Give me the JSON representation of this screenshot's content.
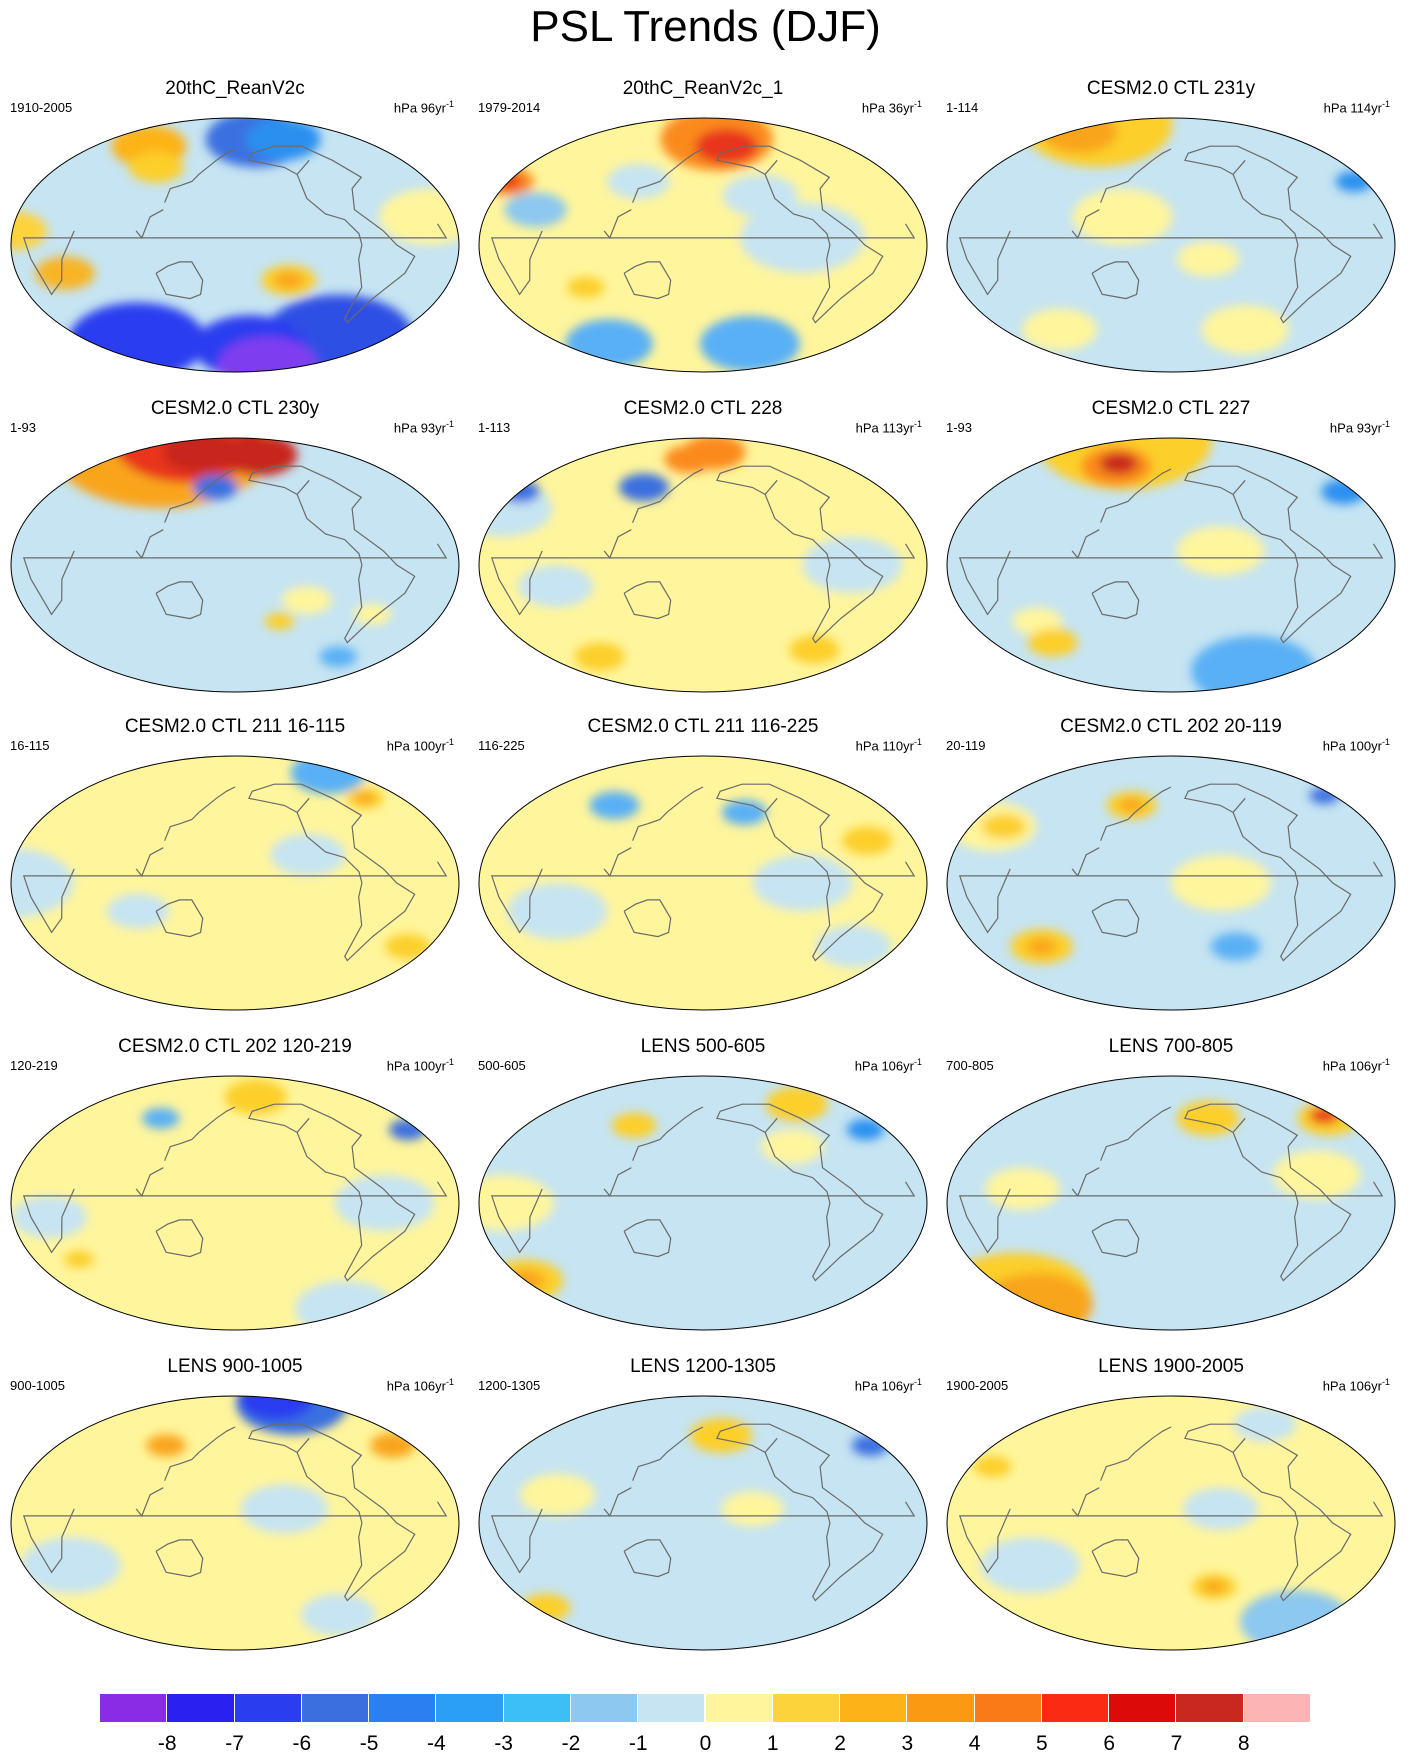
{
  "title": "PSL Trends (DJF)",
  "unit_label": "hPa",
  "panels": [
    {
      "title": "20thC_ReanV2c",
      "period": "1910-2005",
      "scale": "96yr",
      "scale_exp": "-1",
      "base": "#c6e4f2",
      "blobs": [
        {
          "lon": -150,
          "lat": 75,
          "r": 40,
          "c": "#3b6fe0"
        },
        {
          "lon": -110,
          "lat": 75,
          "r": 30,
          "c": "#2b90f0"
        },
        {
          "lon": 70,
          "lat": 70,
          "r": 30,
          "c": "#fcb318"
        },
        {
          "lon": 100,
          "lat": 55,
          "r": 22,
          "c": "#fccf2c"
        },
        {
          "lon": -20,
          "lat": 20,
          "r": 40,
          "c": "#fff59c"
        },
        {
          "lon": 0,
          "lat": 10,
          "r": 28,
          "c": "#fdd33c"
        },
        {
          "lon": -135,
          "lat": -25,
          "r": 22,
          "c": "#fccf2c"
        },
        {
          "lon": -135,
          "lat": -25,
          "r": 12,
          "c": "#f9a51a"
        },
        {
          "lon": 40,
          "lat": -20,
          "r": 24,
          "c": "#f7b528"
        },
        {
          "lon": -60,
          "lat": -65,
          "r": 60,
          "c": "#2f4fe4"
        },
        {
          "lon": 60,
          "lat": -68,
          "r": 55,
          "c": "#2a3ef0"
        },
        {
          "lon": -160,
          "lat": -72,
          "r": 45,
          "c": "#2a3ef0"
        },
        {
          "lon": -100,
          "lat": -85,
          "r": 40,
          "c": "#7f3cf0"
        }
      ]
    },
    {
      "title": "20thC_ReanV2c_1",
      "period": "1979-2014",
      "scale": "36yr",
      "scale_exp": "-1",
      "base": "#fff59c",
      "blobs": [
        {
          "lon": -160,
          "lat": 75,
          "r": 45,
          "c": "#fb8a1a"
        },
        {
          "lon": -150,
          "lat": 70,
          "r": 25,
          "c": "#e8361a"
        },
        {
          "lon": 0,
          "lat": 45,
          "r": 20,
          "c": "#fb8a1a"
        },
        {
          "lon": 0,
          "lat": 45,
          "r": 10,
          "c": "#e8361a"
        },
        {
          "lon": -130,
          "lat": 35,
          "r": 30,
          "c": "#c6e4f2"
        },
        {
          "lon": -100,
          "lat": 5,
          "r": 50,
          "c": "#c6e4f2"
        },
        {
          "lon": 40,
          "lat": 25,
          "r": 25,
          "c": "#8cc8ef"
        },
        {
          "lon": 120,
          "lat": 45,
          "r": 25,
          "c": "#c6e4f2"
        },
        {
          "lon": -120,
          "lat": -70,
          "r": 40,
          "c": "#5ab0f5"
        },
        {
          "lon": 60,
          "lat": -70,
          "r": 35,
          "c": "#5ab0f5"
        },
        {
          "lon": 80,
          "lat": -30,
          "r": 15,
          "c": "#fccf2c"
        }
      ]
    },
    {
      "title": "CESM2.0 CTL 231y",
      "period": "1-114",
      "scale": "114yr",
      "scale_exp": "-1",
      "base": "#c6e4f2",
      "blobs": [
        {
          "lon": 0,
          "lat": 85,
          "r": 60,
          "c": "#fccf2c"
        },
        {
          "lon": 20,
          "lat": 80,
          "r": 30,
          "c": "#f9a51a"
        },
        {
          "lon": -10,
          "lat": 45,
          "r": 15,
          "c": "#2b90f0"
        },
        {
          "lon": 140,
          "lat": 20,
          "r": 40,
          "c": "#fff59c"
        },
        {
          "lon": -150,
          "lat": -10,
          "r": 25,
          "c": "#fff59c"
        },
        {
          "lon": -100,
          "lat": -60,
          "r": 35,
          "c": "#fff59c"
        },
        {
          "lon": 60,
          "lat": -60,
          "r": 30,
          "c": "#fff59c"
        }
      ]
    },
    {
      "title": "CESM2.0 CTL 230y",
      "period": "1-93",
      "scale": "93yr",
      "scale_exp": "-1",
      "base": "#c6e4f2",
      "blobs": [
        {
          "lon": 0,
          "lat": 85,
          "r": 90,
          "c": "#f9a51a"
        },
        {
          "lon": 0,
          "lat": 88,
          "r": 60,
          "c": "#e8361a"
        },
        {
          "lon": -140,
          "lat": 78,
          "r": 30,
          "c": "#c8281e"
        },
        {
          "lon": 120,
          "lat": 80,
          "r": 30,
          "c": "#c8281e"
        },
        {
          "lon": 160,
          "lat": 55,
          "r": 18,
          "c": "#3b6fe0"
        },
        {
          "lon": -120,
          "lat": -25,
          "r": 20,
          "c": "#fff59c"
        },
        {
          "lon": -60,
          "lat": -35,
          "r": 15,
          "c": "#fff59c"
        },
        {
          "lon": -140,
          "lat": -40,
          "r": 12,
          "c": "#fccf2c"
        },
        {
          "lon": -60,
          "lat": -65,
          "r": 15,
          "c": "#5ab0f5"
        }
      ]
    },
    {
      "title": "CESM2.0 CTL 228",
      "period": "1-113",
      "scale": "113yr",
      "scale_exp": "-1",
      "base": "#fff59c",
      "blobs": [
        {
          "lon": 0,
          "lat": 40,
          "r": 40,
          "c": "#c6e4f2"
        },
        {
          "lon": 0,
          "lat": 52,
          "r": 16,
          "c": "#3b6fe0"
        },
        {
          "lon": 120,
          "lat": 55,
          "r": 20,
          "c": "#3b6fe0"
        },
        {
          "lon": -160,
          "lat": 80,
          "r": 25,
          "c": "#fb8a1a"
        },
        {
          "lon": 160,
          "lat": 75,
          "r": 20,
          "c": "#fb8a1a"
        },
        {
          "lon": -60,
          "lat": 0,
          "r": 40,
          "c": "#c6e4f2"
        },
        {
          "lon": 60,
          "lat": -15,
          "r": 30,
          "c": "#c6e4f2"
        },
        {
          "lon": -60,
          "lat": -60,
          "r": 20,
          "c": "#fccf2c"
        },
        {
          "lon": 60,
          "lat": -65,
          "r": 20,
          "c": "#fccf2c"
        }
      ]
    },
    {
      "title": "CESM2.0 CTL 227",
      "period": "1-93",
      "scale": "93yr",
      "scale_exp": "-1",
      "base": "#c6e4f2",
      "blobs": [
        {
          "lon": -10,
          "lat": 52,
          "r": 18,
          "c": "#2b90f0"
        },
        {
          "lon": 0,
          "lat": 88,
          "r": 70,
          "c": "#fccf2c"
        },
        {
          "lon": 110,
          "lat": 70,
          "r": 28,
          "c": "#fb8a1a"
        },
        {
          "lon": 110,
          "lat": 72,
          "r": 15,
          "c": "#c8281e"
        },
        {
          "lon": -140,
          "lat": 10,
          "r": 35,
          "c": "#fff59c"
        },
        {
          "lon": 60,
          "lat": -40,
          "r": 20,
          "c": "#fff59c"
        },
        {
          "lon": 60,
          "lat": -55,
          "r": 20,
          "c": "#fccf2c"
        },
        {
          "lon": -60,
          "lat": -75,
          "r": 50,
          "c": "#5ab0f5"
        }
      ]
    },
    {
      "title": "CESM2.0 CTL 211 16-115",
      "period": "16-115",
      "scale": "100yr",
      "scale_exp": "-1",
      "base": "#fff59c",
      "blobs": [
        {
          "lon": -30,
          "lat": 78,
          "r": 30,
          "c": "#5ab0f5"
        },
        {
          "lon": -40,
          "lat": 60,
          "r": 15,
          "c": "#fccf2c"
        },
        {
          "lon": -40,
          "lat": 60,
          "r": 8,
          "c": "#f9a51a"
        },
        {
          "lon": 0,
          "lat": 0,
          "r": 50,
          "c": "#c6e4f2"
        },
        {
          "lon": -120,
          "lat": 20,
          "r": 30,
          "c": "#c6e4f2"
        },
        {
          "lon": -20,
          "lat": -45,
          "r": 18,
          "c": "#fccf2c"
        },
        {
          "lon": 100,
          "lat": -20,
          "r": 25,
          "c": "#c6e4f2"
        }
      ]
    },
    {
      "title": "CESM2.0 CTL 211 116-225",
      "period": "116-225",
      "scale": "110yr",
      "scale_exp": "-1",
      "base": "#fff59c",
      "blobs": [
        {
          "lon": -140,
          "lat": 50,
          "r": 18,
          "c": "#5ab0f5"
        },
        {
          "lon": 90,
          "lat": 55,
          "r": 20,
          "c": "#5ab0f5"
        },
        {
          "lon": -40,
          "lat": 30,
          "r": 20,
          "c": "#fccf2c"
        },
        {
          "lon": -100,
          "lat": 0,
          "r": 40,
          "c": "#c6e4f2"
        },
        {
          "lon": 60,
          "lat": -20,
          "r": 40,
          "c": "#c6e4f2"
        },
        {
          "lon": -40,
          "lat": -45,
          "r": 30,
          "c": "#c6e4f2"
        }
      ]
    },
    {
      "title": "CESM2.0 CTL 202 20-119",
      "period": "20-119",
      "scale": "100yr",
      "scale_exp": "-1",
      "base": "#c6e4f2",
      "blobs": [
        {
          "lon": 20,
          "lat": 40,
          "r": 35,
          "c": "#fff59c"
        },
        {
          "lon": 30,
          "lat": 40,
          "r": 18,
          "c": "#fccf2c"
        },
        {
          "lon": 140,
          "lat": 55,
          "r": 20,
          "c": "#fccf2c"
        },
        {
          "lon": 140,
          "lat": 55,
          "r": 10,
          "c": "#f9a51a"
        },
        {
          "lon": -10,
          "lat": 62,
          "r": 12,
          "c": "#3b6fe0"
        },
        {
          "lon": -140,
          "lat": 0,
          "r": 40,
          "c": "#fff59c"
        },
        {
          "lon": -120,
          "lat": -45,
          "r": 20,
          "c": "#5ab0f5"
        },
        {
          "lon": 60,
          "lat": -45,
          "r": 25,
          "c": "#fccf2c"
        },
        {
          "lon": 60,
          "lat": -45,
          "r": 12,
          "c": "#f9a51a"
        }
      ]
    },
    {
      "title": "CESM2.0 CTL 202 120-219",
      "period": "120-219",
      "scale": "100yr",
      "scale_exp": "-1",
      "base": "#fff59c",
      "blobs": [
        {
          "lon": -150,
          "lat": 75,
          "r": 25,
          "c": "#fccf2c"
        },
        {
          "lon": -10,
          "lat": 52,
          "r": 15,
          "c": "#3b6fe0"
        },
        {
          "lon": 100,
          "lat": 60,
          "r": 15,
          "c": "#5ab0f5"
        },
        {
          "lon": -60,
          "lat": 0,
          "r": 40,
          "c": "#c6e4f2"
        },
        {
          "lon": 30,
          "lat": -10,
          "r": 30,
          "c": "#c6e4f2"
        },
        {
          "lon": 40,
          "lat": -40,
          "r": 12,
          "c": "#fccf2c"
        },
        {
          "lon": -20,
          "lat": -75,
          "r": 40,
          "c": "#c6e4f2"
        }
      ]
    },
    {
      "title": "LENS 500-605",
      "period": "500-605",
      "scale": "106yr",
      "scale_exp": "-1",
      "base": "#c6e4f2",
      "blobs": [
        {
          "lon": -20,
          "lat": 52,
          "r": 15,
          "c": "#2b90f0"
        },
        {
          "lon": -60,
          "lat": 70,
          "r": 25,
          "c": "#fccf2c"
        },
        {
          "lon": 110,
          "lat": 55,
          "r": 18,
          "c": "#fccf2c"
        },
        {
          "lon": -100,
          "lat": 40,
          "r": 25,
          "c": "#fff59c"
        },
        {
          "lon": 20,
          "lat": 0,
          "r": 40,
          "c": "#fff59c"
        },
        {
          "lon": 0,
          "lat": -55,
          "r": 30,
          "c": "#fccf2c"
        },
        {
          "lon": 0,
          "lat": -55,
          "r": 15,
          "c": "#f9a51a"
        }
      ]
    },
    {
      "title": "LENS 700-805",
      "period": "700-805",
      "scale": "106yr",
      "scale_exp": "-1",
      "base": "#c6e4f2",
      "blobs": [
        {
          "lon": -10,
          "lat": 60,
          "r": 25,
          "c": "#fccf2c"
        },
        {
          "lon": -10,
          "lat": 62,
          "r": 12,
          "c": "#e8361a"
        },
        {
          "lon": -140,
          "lat": 60,
          "r": 25,
          "c": "#fccf2c"
        },
        {
          "lon": -60,
          "lat": 20,
          "r": 35,
          "c": "#fff59c"
        },
        {
          "lon": 60,
          "lat": 10,
          "r": 30,
          "c": "#fff59c"
        },
        {
          "lon": 0,
          "lat": -65,
          "r": 60,
          "c": "#fccf2c"
        },
        {
          "lon": 0,
          "lat": -72,
          "r": 45,
          "c": "#f9a51a"
        }
      ]
    },
    {
      "title": "LENS 900-1005",
      "period": "900-1005",
      "scale": "106yr",
      "scale_exp": "-1",
      "base": "#fff59c",
      "blobs": [
        {
          "lon": -40,
          "lat": 85,
          "r": 45,
          "c": "#3b6fe0"
        },
        {
          "lon": -20,
          "lat": 88,
          "r": 30,
          "c": "#2a3ef0"
        },
        {
          "lon": -20,
          "lat": 55,
          "r": 18,
          "c": "#f9a51a"
        },
        {
          "lon": 110,
          "lat": 55,
          "r": 16,
          "c": "#f9a51a"
        },
        {
          "lon": -140,
          "lat": 10,
          "r": 35,
          "c": "#c6e4f2"
        },
        {
          "lon": 40,
          "lat": -30,
          "r": 40,
          "c": "#c6e4f2"
        },
        {
          "lon": -60,
          "lat": -65,
          "r": 30,
          "c": "#c6e4f2"
        }
      ]
    },
    {
      "title": "LENS 1200-1305",
      "period": "1200-1305",
      "scale": "106yr",
      "scale_exp": "-1",
      "base": "#c6e4f2",
      "blobs": [
        {
          "lon": -160,
          "lat": 62,
          "r": 25,
          "c": "#fccf2c"
        },
        {
          "lon": -10,
          "lat": 55,
          "r": 15,
          "c": "#3b6fe0"
        },
        {
          "lon": 60,
          "lat": 20,
          "r": 30,
          "c": "#fff59c"
        },
        {
          "lon": -140,
          "lat": 10,
          "r": 25,
          "c": "#fff59c"
        },
        {
          "lon": 10,
          "lat": -60,
          "r": 20,
          "c": "#fccf2c"
        }
      ]
    },
    {
      "title": "LENS 1900-2005",
      "period": "1900-2005",
      "scale": "106yr",
      "scale_exp": "-1",
      "base": "#fff59c",
      "blobs": [
        {
          "lon": -60,
          "lat": 70,
          "r": 25,
          "c": "#c6e4f2"
        },
        {
          "lon": 20,
          "lat": 40,
          "r": 15,
          "c": "#fccf2c"
        },
        {
          "lon": -140,
          "lat": 10,
          "r": 30,
          "c": "#c6e4f2"
        },
        {
          "lon": 60,
          "lat": -30,
          "r": 40,
          "c": "#c6e4f2"
        },
        {
          "lon": -140,
          "lat": -45,
          "r": 18,
          "c": "#fccf2c"
        },
        {
          "lon": -140,
          "lat": -45,
          "r": 9,
          "c": "#f9a51a"
        },
        {
          "lon": -20,
          "lat": -70,
          "r": 45,
          "c": "#8cc8ef"
        }
      ]
    }
  ],
  "colorbar": {
    "labels": [
      "-8",
      "-7",
      "-6",
      "-5",
      "-4",
      "-3",
      "-2",
      "-1",
      "0",
      "1",
      "2",
      "3",
      "4",
      "5",
      "6",
      "7",
      "8"
    ],
    "colors": [
      "#8a2be6",
      "#2a20f0",
      "#2a3ef0",
      "#3b6fe0",
      "#2b7ff0",
      "#2b9ff5",
      "#3cbff5",
      "#8cc8ef",
      "#c6e4f2",
      "#fff59c",
      "#fdd33c",
      "#fcb318",
      "#fb9a12",
      "#f97a16",
      "#fb2a12",
      "#dd0a0a",
      "#c8281e",
      "#fdb4b4"
    ]
  }
}
